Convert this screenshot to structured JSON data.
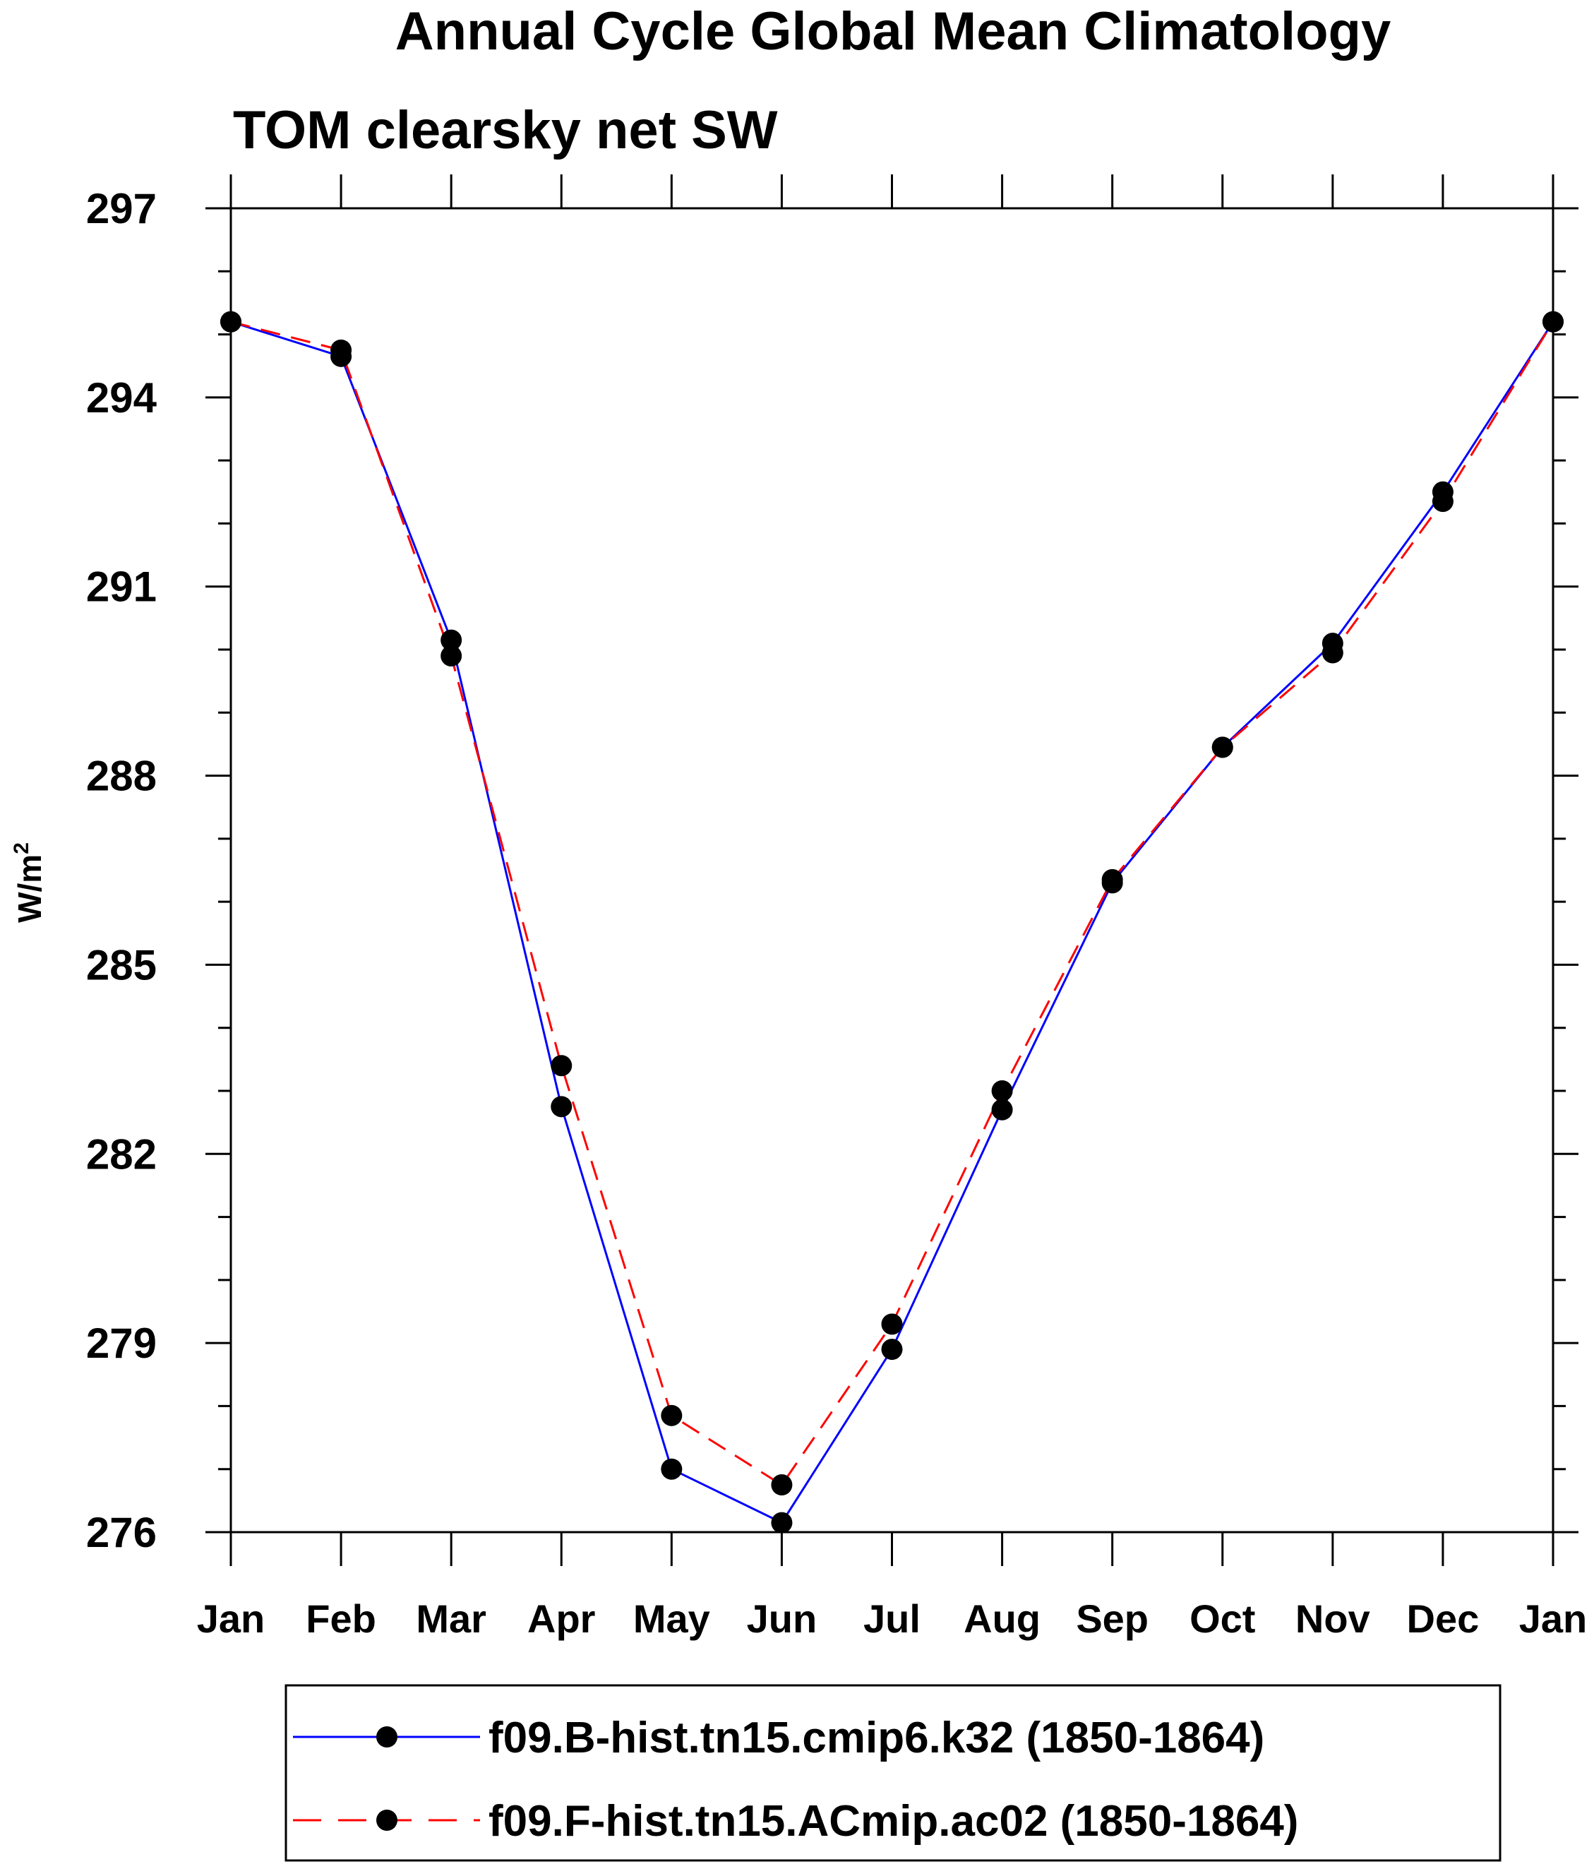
{
  "chart_data": {
    "type": "line",
    "title": "Annual Cycle Global Mean Climatology",
    "subtitle": "TOM clearsky net SW",
    "ylabel": "W/m",
    "ylabel_superscript": "2",
    "ylim": [
      276,
      297
    ],
    "yticks": [
      "276",
      "279",
      "282",
      "285",
      "288",
      "291",
      "294",
      "297"
    ],
    "categories": [
      "Jan",
      "Feb",
      "Mar",
      "Apr",
      "May",
      "Jun",
      "Jul",
      "Aug",
      "Sep",
      "Oct",
      "Nov",
      "Dec",
      "Jan"
    ],
    "series": [
      {
        "name": "f09.B-hist.tn15.cmip6.k32 (1850-1864)",
        "color": "#0000ff",
        "dash": "solid",
        "values": [
          295.2,
          294.65,
          290.15,
          282.75,
          277.0,
          276.15,
          278.9,
          282.7,
          286.3,
          288.45,
          290.1,
          292.5,
          295.2
        ]
      },
      {
        "name": "f09.F-hist.tn15.ACmip.ac02 (1850-1864)",
        "color": "#ff0000",
        "dash": "dashed",
        "values": [
          295.2,
          294.75,
          289.9,
          283.4,
          277.85,
          276.75,
          279.3,
          283.0,
          286.35,
          288.45,
          289.95,
          292.35,
          295.2
        ]
      }
    ],
    "grid": false,
    "legend_placement": "bottom"
  }
}
